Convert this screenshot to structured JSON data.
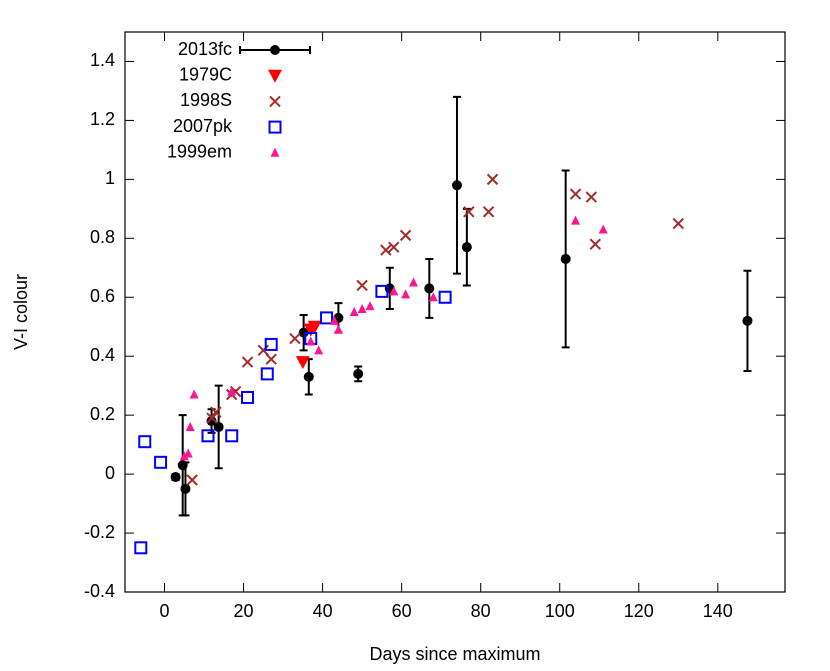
{
  "chart_data": {
    "type": "scatter",
    "x_label": "Days since maximum",
    "y_label": "V-I colour",
    "xlim": [
      -10,
      157
    ],
    "ylim": [
      -0.4,
      1.5
    ],
    "xticks": [
      0,
      20,
      40,
      60,
      80,
      100,
      120,
      140
    ],
    "yticks": [
      -0.4,
      -0.2,
      0,
      0.2,
      0.4,
      0.6,
      0.8,
      1,
      1.2,
      1.4
    ],
    "legend": "top left",
    "series": [
      {
        "name": "2013fc",
        "color": "#000000",
        "marker": "circle",
        "x": [
          2.8,
          4.6,
          5.3,
          11.9,
          13.7,
          35.2,
          36.5,
          44,
          49,
          57,
          67,
          74,
          76.5,
          101.5,
          147.5
        ],
        "values": [
          -0.01,
          0.03,
          -0.05,
          0.18,
          0.16,
          0.48,
          0.33,
          0.53,
          0.34,
          0.63,
          0.63,
          0.98,
          0.77,
          0.73,
          0.52
        ],
        "errors": [
          0.01,
          0.17,
          0.09,
          0.04,
          0.14,
          0.06,
          0.06,
          0.05,
          0.025,
          0.07,
          0.1,
          0.3,
          0.13,
          0.3,
          0.17
        ]
      },
      {
        "name": "1979C",
        "color": "#ff0000",
        "marker": "triangle-down",
        "x": [
          35,
          37,
          38
        ],
        "values": [
          0.38,
          0.49,
          0.5
        ]
      },
      {
        "name": "1998S",
        "color": "#a52a2a",
        "marker": "cross",
        "x": [
          7,
          12,
          13,
          17,
          18,
          21,
          25,
          27,
          33,
          50,
          56,
          58,
          61,
          77,
          82,
          83,
          104,
          108,
          109,
          130
        ],
        "values": [
          -0.02,
          0.19,
          0.21,
          0.27,
          0.28,
          0.38,
          0.42,
          0.39,
          0.46,
          0.64,
          0.76,
          0.77,
          0.81,
          0.89,
          0.89,
          1.0,
          0.95,
          0.94,
          0.78,
          0.85
        ]
      },
      {
        "name": "2007pk",
        "color": "#0000ff",
        "marker": "square",
        "x": [
          -6,
          -5,
          -1,
          11,
          17,
          21,
          26,
          27,
          37,
          41,
          55,
          71
        ],
        "values": [
          -0.25,
          0.11,
          0.04,
          0.13,
          0.13,
          0.26,
          0.34,
          0.44,
          0.46,
          0.53,
          0.62,
          0.6
        ]
      },
      {
        "name": "1999em",
        "color": "#ff1493",
        "marker": "triangle-up",
        "x": [
          5,
          6,
          6.5,
          7.5,
          17,
          37,
          39,
          43,
          44,
          48,
          50,
          52,
          58,
          61,
          63,
          68,
          104,
          111
        ],
        "values": [
          0.06,
          0.07,
          0.16,
          0.27,
          0.28,
          0.45,
          0.42,
          0.52,
          0.49,
          0.55,
          0.56,
          0.57,
          0.62,
          0.61,
          0.65,
          0.6,
          0.86,
          0.83
        ]
      }
    ]
  }
}
